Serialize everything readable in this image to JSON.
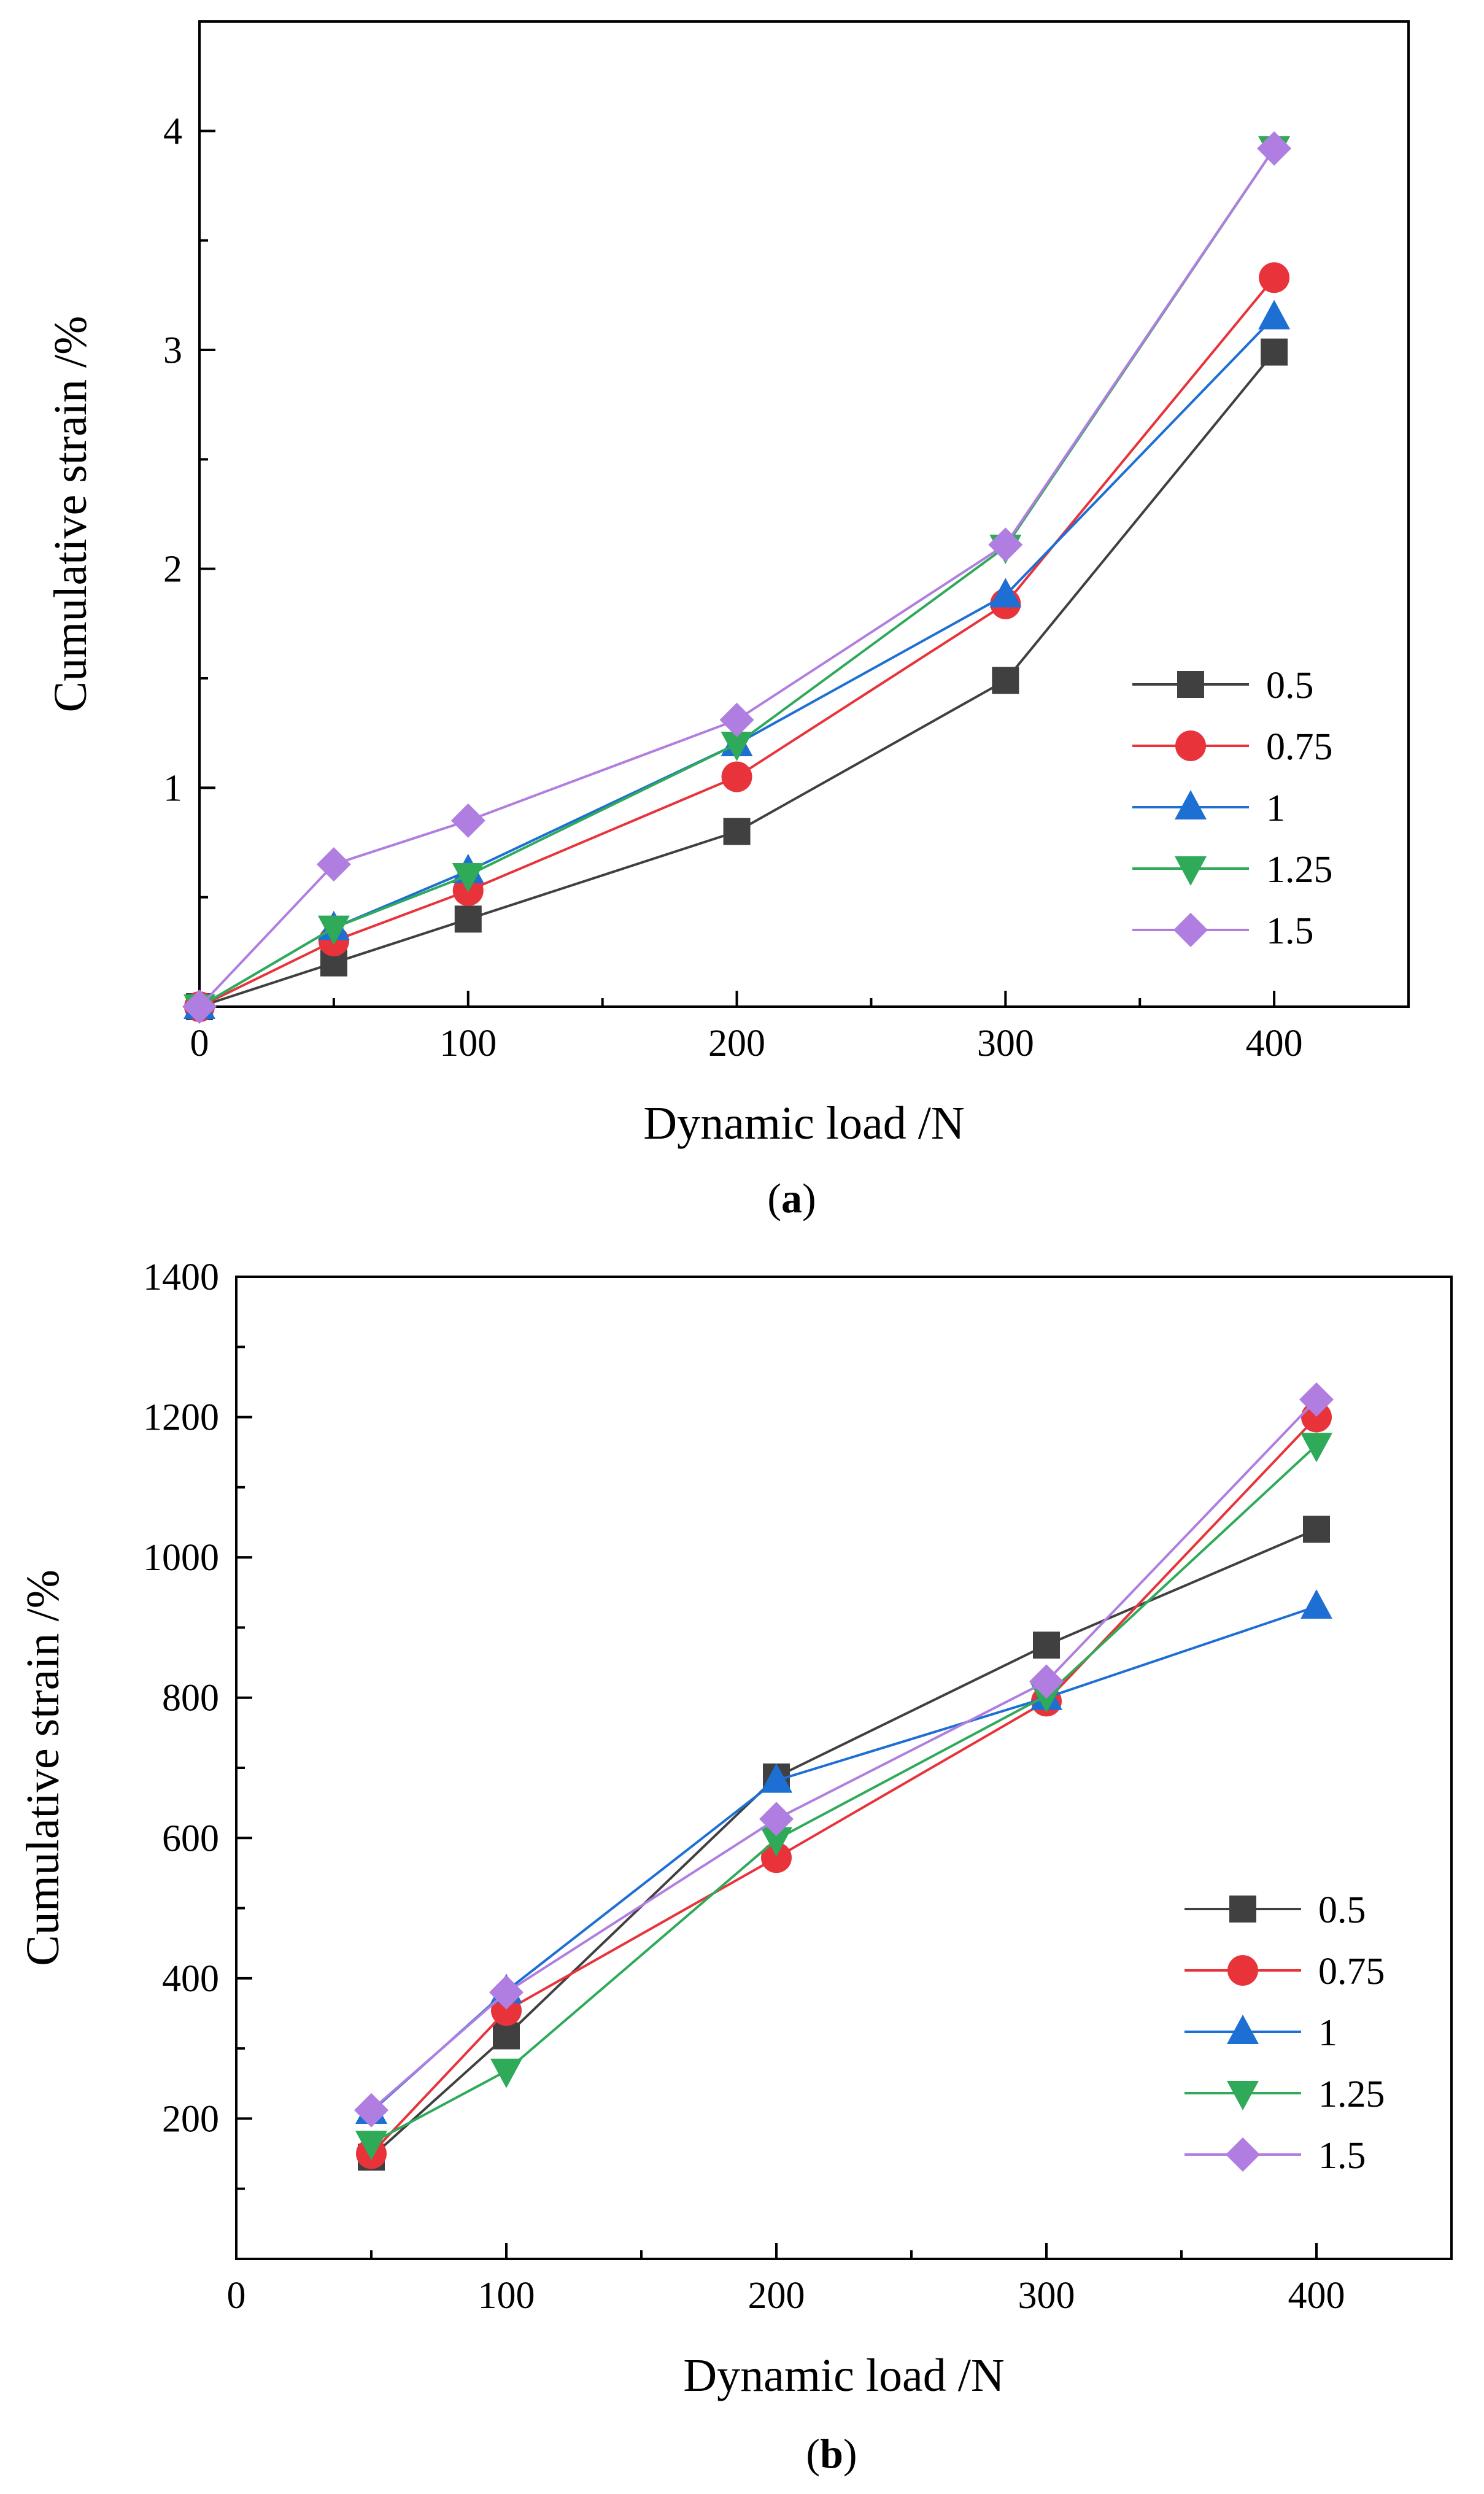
{
  "chart_data": [
    {
      "type": "line",
      "caption": "(a)",
      "caption_letter": "a",
      "xlabel": "Dynamic load /N",
      "ylabel": "Cumulative strain /%",
      "xlim": [
        0,
        450
      ],
      "ylim": [
        0,
        4.5
      ],
      "xticks": [
        0,
        100,
        200,
        300,
        400
      ],
      "yticks": [
        1,
        2,
        3,
        4
      ],
      "xtick_labels": [
        "0",
        "100",
        "200",
        "300",
        "400"
      ],
      "ytick_labels": [
        "1",
        "2",
        "3",
        "4"
      ],
      "legend_position": "bottom-right",
      "series": [
        {
          "name": "0.5",
          "color": "#404040",
          "marker": "square",
          "x": [
            0,
            50,
            100,
            200,
            300,
            400
          ],
          "values": [
            0,
            0.2,
            0.4,
            0.8,
            1.49,
            2.99
          ]
        },
        {
          "name": "0.75",
          "color": "#e8333b",
          "marker": "circle",
          "x": [
            0,
            50,
            100,
            200,
            300,
            400
          ],
          "values": [
            0,
            0.3,
            0.53,
            1.05,
            1.84,
            3.33
          ]
        },
        {
          "name": "1",
          "color": "#1e6fd4",
          "marker": "triangle-up",
          "x": [
            0,
            50,
            100,
            200,
            300,
            400
          ],
          "values": [
            0,
            0.36,
            0.62,
            1.2,
            1.88,
            3.15
          ]
        },
        {
          "name": "1.25",
          "color": "#2eaa59",
          "marker": "triangle-down",
          "x": [
            0,
            50,
            100,
            200,
            300,
            400
          ],
          "values": [
            0,
            0.36,
            0.6,
            1.2,
            2.1,
            3.92
          ]
        },
        {
          "name": "1.5",
          "color": "#b07ee0",
          "marker": "diamond",
          "x": [
            0,
            50,
            100,
            200,
            300,
            400
          ],
          "values": [
            0,
            0.65,
            0.85,
            1.31,
            2.11,
            3.92
          ]
        }
      ]
    },
    {
      "type": "line",
      "caption": "(b)",
      "caption_letter": "b",
      "xlabel": "Dynamic load /N",
      "ylabel": "Cumulative strain /%",
      "xlim": [
        0,
        450
      ],
      "ylim": [
        0,
        1400
      ],
      "xticks": [
        0,
        100,
        200,
        300,
        400
      ],
      "yticks": [
        200,
        400,
        600,
        800,
        1000,
        1200,
        1400
      ],
      "xtick_labels": [
        "0",
        "100",
        "200",
        "300",
        "400"
      ],
      "ytick_labels": [
        "200",
        "400",
        "600",
        "800",
        "1000",
        "1200",
        "1400"
      ],
      "legend_position": "bottom-right",
      "series": [
        {
          "name": "0.5",
          "color": "#404040",
          "marker": "square",
          "x": [
            50,
            100,
            200,
            300,
            400
          ],
          "values": [
            145,
            318,
            687,
            875,
            1040
          ]
        },
        {
          "name": "0.75",
          "color": "#e8333b",
          "marker": "circle",
          "x": [
            50,
            100,
            200,
            300,
            400
          ],
          "values": [
            150,
            354,
            572,
            795,
            1200
          ]
        },
        {
          "name": "1",
          "color": "#1e6fd4",
          "marker": "triangle-up",
          "x": [
            50,
            100,
            200,
            300,
            400
          ],
          "values": [
            210,
            382,
            682,
            800,
            930
          ]
        },
        {
          "name": "1.25",
          "color": "#2eaa59",
          "marker": "triangle-down",
          "x": [
            50,
            100,
            200,
            300,
            400
          ],
          "values": [
            165,
            268,
            598,
            803,
            1160
          ]
        },
        {
          "name": "1.5",
          "color": "#b07ee0",
          "marker": "diamond",
          "x": [
            50,
            100,
            200,
            300,
            400
          ],
          "values": [
            212,
            380,
            627,
            823,
            1225
          ]
        }
      ]
    }
  ]
}
